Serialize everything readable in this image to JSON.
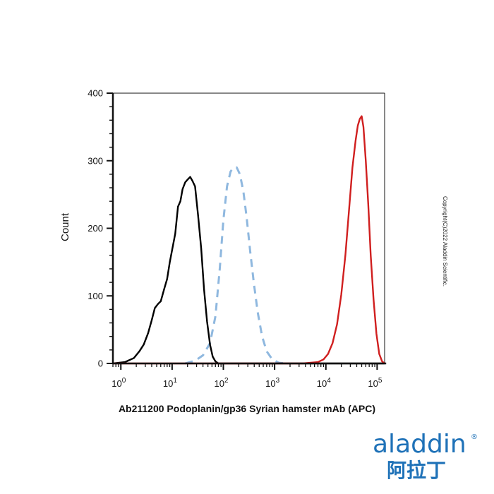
{
  "chart_data": {
    "type": "histogram",
    "xlabel": "Ab211200 Podoplanin/gp36 Syrian hamster mAb (APC)",
    "ylabel": "Count",
    "x_scale": "log",
    "xlim": [
      0.7,
      140000
    ],
    "ylim": [
      0,
      400
    ],
    "yticks": [
      "0",
      "100",
      "200",
      "300",
      "400"
    ],
    "xticks": [
      {
        "base": "10",
        "exp": "0",
        "value": 1
      },
      {
        "base": "10",
        "exp": "1",
        "value": 10
      },
      {
        "base": "10",
        "exp": "2",
        "value": 100
      },
      {
        "base": "10",
        "exp": "3",
        "value": 1000
      },
      {
        "base": "10",
        "exp": "4",
        "value": 10000
      },
      {
        "base": "10",
        "exp": "5",
        "value": 100000
      }
    ],
    "series": [
      {
        "color": "#000000",
        "dash": "solid",
        "points": [
          [
            0.7,
            0
          ],
          [
            1.2,
            2
          ],
          [
            1.8,
            8
          ],
          [
            2.3,
            18
          ],
          [
            2.8,
            28
          ],
          [
            3.4,
            45
          ],
          [
            4.0,
            64
          ],
          [
            4.6,
            82
          ],
          [
            5.3,
            88
          ],
          [
            6.0,
            92
          ],
          [
            7.0,
            110
          ],
          [
            8.0,
            125
          ],
          [
            9.0,
            150
          ],
          [
            10.0,
            168
          ],
          [
            11.5,
            192
          ],
          [
            13.0,
            232
          ],
          [
            14.5,
            240
          ],
          [
            16.0,
            258
          ],
          [
            18.0,
            268
          ],
          [
            20.0,
            272
          ],
          [
            22.5,
            276
          ],
          [
            25.0,
            270
          ],
          [
            28.0,
            262
          ],
          [
            32.0,
            220
          ],
          [
            37.0,
            170
          ],
          [
            42.0,
            110
          ],
          [
            48.0,
            62
          ],
          [
            55.0,
            28
          ],
          [
            62.0,
            10
          ],
          [
            70.0,
            3
          ],
          [
            80.0,
            0
          ],
          [
            150000,
            0
          ]
        ]
      },
      {
        "color": "#8fb8df",
        "dash": "dashed",
        "points": [
          [
            18,
            0
          ],
          [
            28,
            4
          ],
          [
            40,
            12
          ],
          [
            55,
            30
          ],
          [
            70,
            70
          ],
          [
            85,
            140
          ],
          [
            100,
            212
          ],
          [
            118,
            262
          ],
          [
            138,
            284
          ],
          [
            158,
            290
          ],
          [
            182,
            290
          ],
          [
            210,
            280
          ],
          [
            245,
            255
          ],
          [
            285,
            216
          ],
          [
            335,
            165
          ],
          [
            395,
            118
          ],
          [
            470,
            75
          ],
          [
            570,
            40
          ],
          [
            700,
            18
          ],
          [
            900,
            6
          ],
          [
            1200,
            1
          ],
          [
            1600,
            0
          ]
        ]
      },
      {
        "color": "#d01f1f",
        "dash": "solid",
        "points": [
          [
            0.7,
            0
          ],
          [
            3500,
            0
          ],
          [
            7000,
            2
          ],
          [
            9000,
            6
          ],
          [
            11000,
            14
          ],
          [
            13500,
            30
          ],
          [
            16500,
            58
          ],
          [
            20000,
            102
          ],
          [
            24000,
            160
          ],
          [
            28000,
            222
          ],
          [
            33000,
            290
          ],
          [
            38000,
            330
          ],
          [
            42000,
            352
          ],
          [
            46000,
            362
          ],
          [
            50000,
            366
          ],
          [
            54000,
            350
          ],
          [
            60000,
            300
          ],
          [
            67000,
            236
          ],
          [
            75000,
            160
          ],
          [
            85000,
            95
          ],
          [
            97000,
            44
          ],
          [
            110000,
            14
          ],
          [
            125000,
            3
          ],
          [
            140000,
            0
          ]
        ]
      }
    ]
  },
  "copyright": "Copyright(C)2022 Aladdin Scientific.",
  "logo": {
    "latin": "aladdin",
    "cjk": "阿拉丁",
    "mark": "®"
  }
}
